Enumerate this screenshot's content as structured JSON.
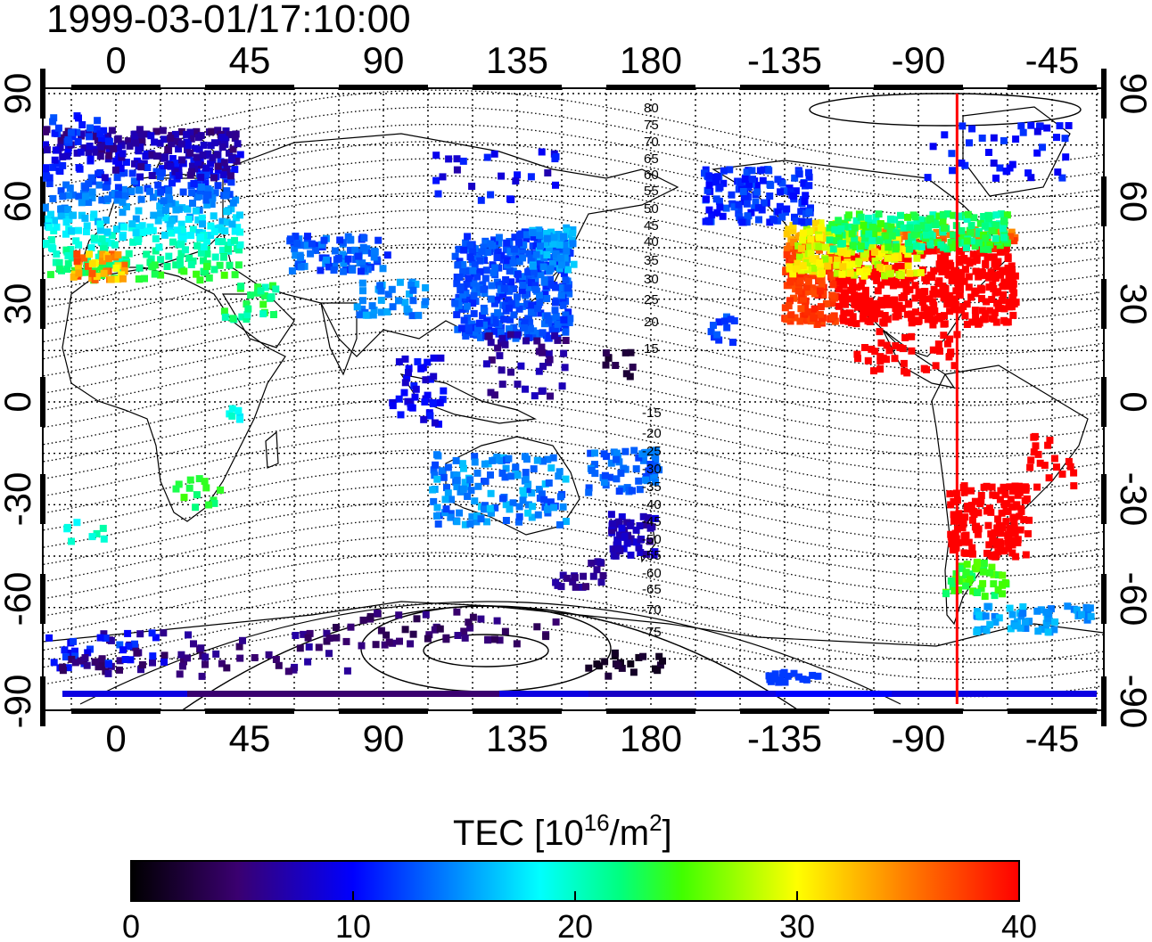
{
  "timestamp": "1999-03-01/17:10:00",
  "map": {
    "lon_tick_labels": [
      "0",
      "45",
      "90",
      "135",
      "180",
      "-135",
      "-90",
      "-45"
    ],
    "lat_tick_labels": [
      "90",
      "60",
      "30",
      "0",
      "-30",
      "-60",
      "-90"
    ],
    "grid": "dotted, 15 degree spacing",
    "contour_labels_north": [
      "80",
      "75",
      "70",
      "65",
      "60",
      "55",
      "50",
      "45",
      "40",
      "35",
      "30",
      "25",
      "20",
      "15"
    ],
    "contour_labels_south": [
      "-15",
      "-20",
      "-25",
      "-30",
      "-35",
      "-40",
      "-45",
      "-50",
      "-55",
      "-60",
      "-65",
      "-70",
      "-75"
    ],
    "sun_meridian_lon": -77,
    "sun_meridian_color": "#ff0000"
  },
  "colorbar": {
    "label_main": "TEC  [10",
    "label_exp1": "16",
    "label_mid": "/m",
    "label_exp2": "2",
    "label_end": "]",
    "min": 0,
    "max": 40,
    "tick_labels": [
      "0",
      "10",
      "20",
      "30",
      "40"
    ],
    "stops": [
      "#000000",
      "#4b0082",
      "#0000ff",
      "#00ffff",
      "#00ff00",
      "#ffff00",
      "#ff8000",
      "#ff0000"
    ]
  }
}
